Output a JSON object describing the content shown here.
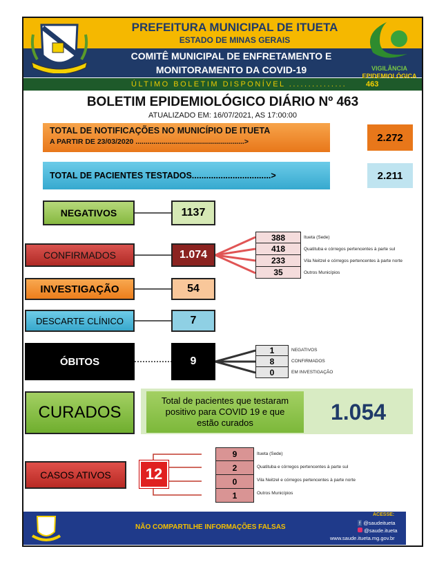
{
  "header": {
    "line1": "PREFEITURA MUNICIPAL DE ITUETA",
    "line2": "ESTADO DE MINAS GERAIS",
    "line3": "COMITÊ MUNICIPAL DE ENFRETAMENTO E",
    "line4": "MONITORAMENTO DA COVID-19",
    "ultimo_label": "ÚLTIMO BOLETIM DISPONÍVEL ...............",
    "ultimo_value": "463",
    "logo_right_1": "VIGILÂNCIA",
    "logo_right_2": "EPIDEMIOLÓGICA"
  },
  "title": "BOLETIM EPIDEMIOLÓGICO DIÁRIO Nº 463",
  "updated": "ATUALIZADO EM: 16/07/2021, AS 17:00:00",
  "notificacoes": {
    "label1": "TOTAL DE NOTIFICAÇÕES NO MUNICÍPIO DE ITUETA",
    "label2": "A PARTIR DE 23/03/2020 ......................................................>",
    "value": "2.272"
  },
  "testados": {
    "label": "TOTAL DE PACIENTES TESTADOS.................................>",
    "value": "2.211"
  },
  "negativos": {
    "label": "NEGATIVOS",
    "value": "1137"
  },
  "confirmados": {
    "label": "CONFIRMADOS",
    "value": "1.074",
    "breakdown": [
      {
        "value": "388",
        "label": "Itueta (Sede)"
      },
      {
        "value": "418",
        "label": "Quatituba e córregos pertencentes à parte sul"
      },
      {
        "value": "233",
        "label": "Vila Neitzel e córregos pertencentes à parte norte"
      },
      {
        "value": "35",
        "label": "Outros Municípios"
      }
    ]
  },
  "investigacao": {
    "label": "INVESTIGAÇÃO",
    "value": "54"
  },
  "descarte": {
    "label": "DESCARTE CLÍNICO",
    "value": "7"
  },
  "obitos": {
    "label": "ÓBITOS",
    "value": "9",
    "breakdown": [
      {
        "value": "1",
        "label": "NEGATIVOS"
      },
      {
        "value": "8",
        "label": "CONFIRMADOS"
      },
      {
        "value": "0",
        "label": "EM INVESTIGAÇÃO"
      }
    ]
  },
  "curados": {
    "label": "CURADOS",
    "description": "Total de pacientes que testaram positivo para COVID 19 e que estão curados",
    "value": "1.054"
  },
  "ativos": {
    "label": "CASOS ATIVOS",
    "value": "12",
    "breakdown": [
      {
        "value": "9",
        "label": "Itueta (Sede)"
      },
      {
        "value": "2",
        "label": "Quatituba e córregos pertencentes à parte sul"
      },
      {
        "value": "0",
        "label": "Vila Neitzel e córregos pertencentes à parte norte"
      },
      {
        "value": "1",
        "label": "Outros Municípios"
      }
    ]
  },
  "footer": {
    "message": "NÃO COMPARTILHE INFORMAÇÕES FALSAS",
    "acesse": "ACESSE:",
    "facebook": "@saudeitueta",
    "instagram": "@saude.itueta",
    "website": "www.saude.itueta.mg.gov.br"
  },
  "colors": {
    "yellow": "#f5b800",
    "navy": "#1f3a68",
    "green_band": "#1e5a2a",
    "orange": "#f08a24",
    "blue": "#4db8d8",
    "green": "#9dcb5a",
    "red": "#c0392b",
    "darkred": "#8b2320"
  }
}
